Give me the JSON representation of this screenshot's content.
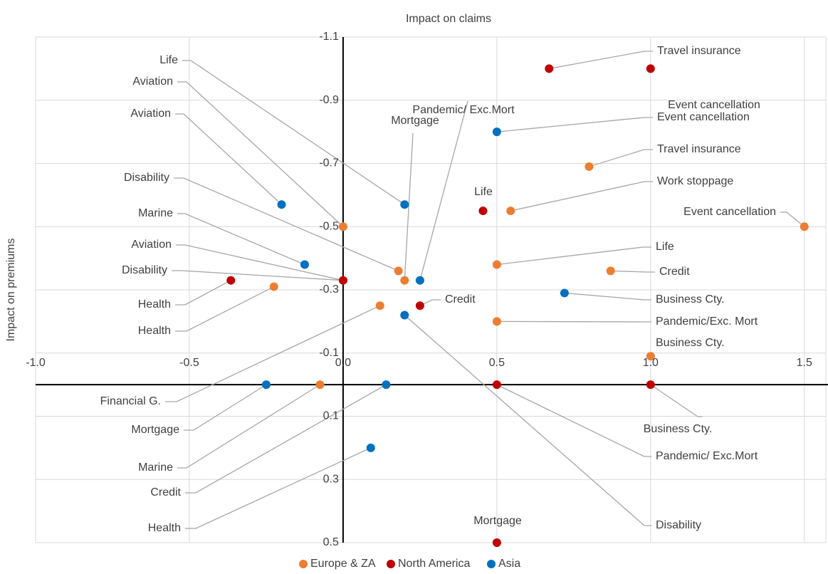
{
  "chart_data": {
    "type": "scatter",
    "xlabel": "Impact on claims",
    "ylabel": "Impact on premiums",
    "xlim": [
      -1,
      1.57
    ],
    "ylim": [
      -1.1,
      0.5
    ],
    "y_inverted": true,
    "grid": true,
    "legend": "bottom",
    "xticks": [
      {
        "value": -1,
        "label": "-1.0"
      },
      -0.5,
      {
        "value": 0,
        "label": "0.0"
      },
      0.5,
      {
        "value": 1,
        "label": "1.0"
      },
      1.5
    ],
    "yticks": [
      -1.1,
      -0.9,
      -0.7,
      -0.5,
      -0.3,
      -0.1,
      0.1,
      0.3,
      0.5
    ],
    "series": [
      {
        "name": "Europe & ZA",
        "color": "#ED7D31",
        "x": [
          0,
          0.18,
          0.2,
          -0.225,
          0.12,
          0.8,
          0.545,
          1.5,
          0.5,
          0.87,
          0.5,
          1.0,
          -0.075,
          0
        ],
        "values": [
          -0.5,
          -0.36,
          -0.33,
          -0.31,
          -0.25,
          -0.69,
          -0.55,
          -0.5,
          -0.38,
          -0.36,
          -0.2,
          -0.09,
          0,
          -0.33
        ],
        "labels": [
          "Aviation",
          "Disability",
          "Mortgage",
          "Health",
          "Financial G.",
          "Travel insurance",
          "Work stoppage",
          "Event cancellation",
          "Life",
          "Credit",
          "Pandemic/Exc. Mort",
          "Business Cty.",
          "Marine",
          "Aviation"
        ]
      },
      {
        "name": "North America",
        "color": "#C00000",
        "x": [
          0.67,
          1.0,
          0.455,
          0,
          -0.365,
          0.25,
          0.5,
          1.0,
          0.5
        ],
        "values": [
          -1.0,
          -1.0,
          -0.55,
          -0.33,
          -0.33,
          -0.25,
          0,
          0,
          0.5
        ],
        "labels": [
          "Travel insurance",
          "Event cancellation",
          "Life",
          "Disability",
          "Health",
          "Credit",
          "Pandemic/ Exc.Mort",
          "Business Cty.",
          "Mortgage"
        ]
      },
      {
        "name": "Asia",
        "color": "#0070C0",
        "x": [
          0.5,
          -0.2,
          0.2,
          -0.125,
          0.25,
          0.72,
          0.2,
          -0.25,
          0.14,
          0.09
        ],
        "values": [
          -0.8,
          -0.57,
          -0.57,
          -0.38,
          -0.33,
          -0.29,
          -0.22,
          0,
          0,
          0.2
        ],
        "labels": [
          "Event cancellation",
          "Aviation",
          "Life",
          "Marine",
          "Pandemic/ Exc.Mort",
          "Business Cty.",
          "Disability",
          "Mortgage",
          "Credit",
          "Health"
        ]
      }
    ]
  }
}
